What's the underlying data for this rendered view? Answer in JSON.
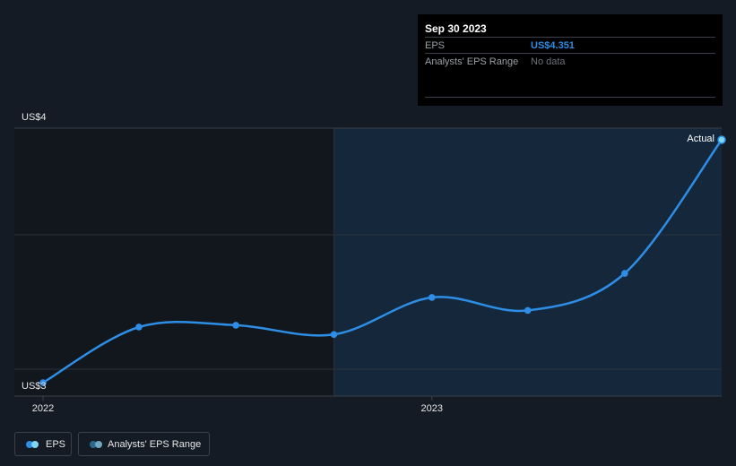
{
  "chart_data": {
    "type": "line",
    "x": [
      "2022-01-01",
      "2022-04-01",
      "2022-07-01",
      "2022-10-01",
      "2023-01-01",
      "2023-04-01",
      "2023-07-01",
      "2023-09-30"
    ],
    "series": [
      {
        "name": "EPS",
        "color": "#2e8ee6",
        "values": [
          3.04,
          3.34,
          3.35,
          3.3,
          3.5,
          3.43,
          3.63,
          4.351
        ]
      }
    ],
    "y_tick_labels": [
      "US$4",
      "US$3"
    ],
    "x_tick_labels": [
      "2022",
      "2023"
    ],
    "ylim": [
      3.0,
      4.1
    ],
    "forecast_shading_start": "2022-10-01",
    "end_label": "Actual",
    "grid": true
  },
  "tooltip": {
    "date": "Sep 30 2023",
    "rows": [
      {
        "label": "EPS",
        "value": "US$4.351"
      },
      {
        "label": "Analysts' EPS Range",
        "value": "No data"
      }
    ]
  },
  "legend": [
    {
      "label": "EPS",
      "colors": [
        "#2e8ee6",
        "#7dd6f4"
      ]
    },
    {
      "label": "Analysts' EPS Range",
      "colors": [
        "#2b6a8c",
        "#6fa8c0"
      ]
    }
  ]
}
